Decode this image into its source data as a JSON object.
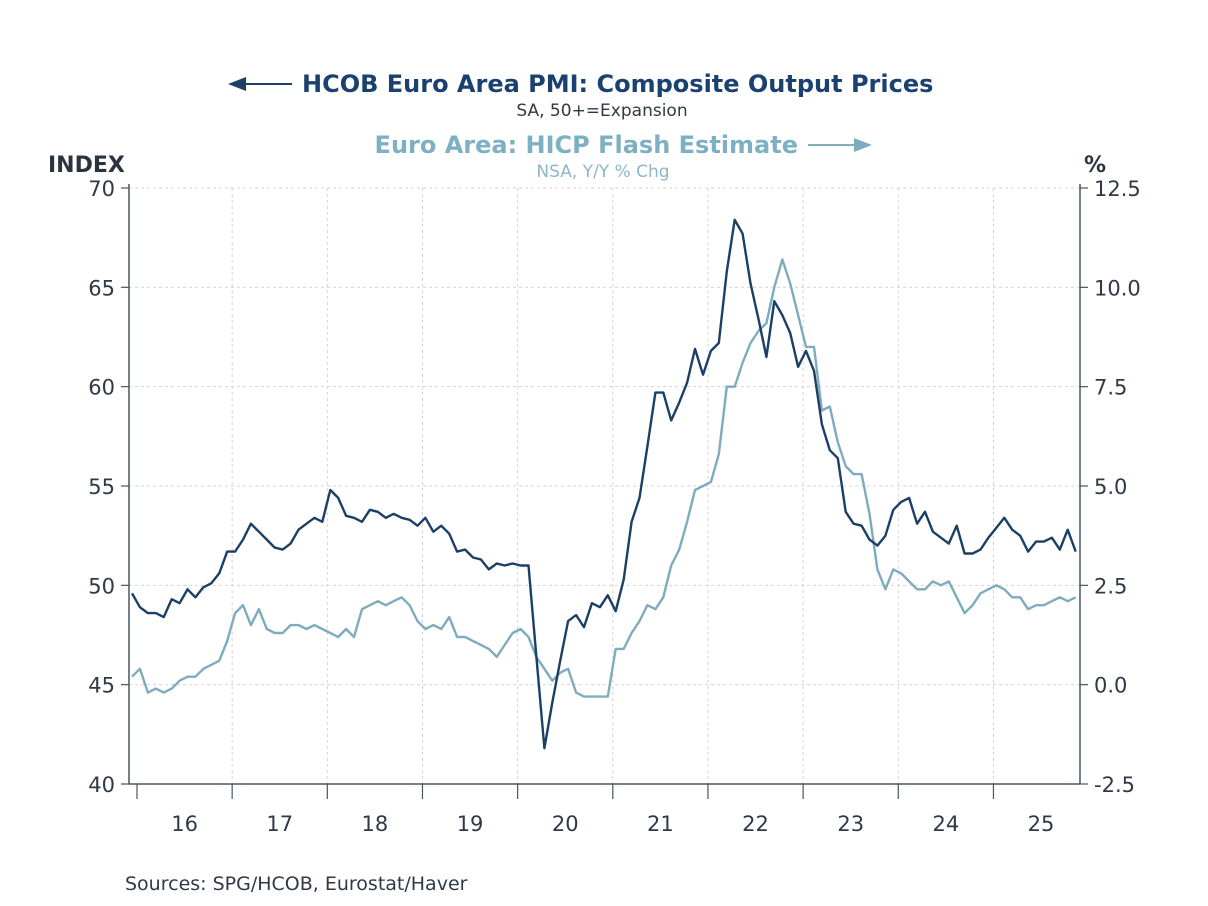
{
  "chart_data": {
    "type": "line",
    "title": "",
    "series": [
      {
        "name": "HCOB Euro Area PMI: Composite Output Prices",
        "subtitle": "SA, 50+=Expansion",
        "axis": "left",
        "color": "#1c3f66",
        "values": [
          49.6,
          48.9,
          48.6,
          48.6,
          48.4,
          49.3,
          49.1,
          49.8,
          49.4,
          49.9,
          50.1,
          50.6,
          51.7,
          51.7,
          52.3,
          53.1,
          52.7,
          52.3,
          51.9,
          51.8,
          52.1,
          52.8,
          53.1,
          53.4,
          53.2,
          54.8,
          54.4,
          53.5,
          53.4,
          53.2,
          53.8,
          53.7,
          53.4,
          53.6,
          53.4,
          53.3,
          53.0,
          53.4,
          52.7,
          53.0,
          52.6,
          51.7,
          51.8,
          51.4,
          51.3,
          50.8,
          51.1,
          51.0,
          51.1,
          51.0,
          51.0,
          46.4,
          41.8,
          44.1,
          46.2,
          48.2,
          48.5,
          47.9,
          49.1,
          48.9,
          49.5,
          48.7,
          50.3,
          53.2,
          54.4,
          57.0,
          59.7,
          59.7,
          58.3,
          59.2,
          60.2,
          61.9,
          60.6,
          61.8,
          62.2,
          65.8,
          68.4,
          67.7,
          65.2,
          63.4,
          61.5,
          64.3,
          63.6,
          62.7,
          61.0,
          61.8,
          60.8,
          58.1,
          56.8,
          56.4,
          53.7,
          53.1,
          53.0,
          52.3,
          52.0,
          52.5,
          53.8,
          54.2,
          54.4,
          53.1,
          53.7,
          52.7,
          52.4,
          52.1,
          53.0,
          51.6,
          51.6,
          51.8,
          52.4,
          52.9,
          53.4,
          52.8,
          52.5,
          51.7,
          52.2,
          52.2,
          52.4,
          51.8,
          52.8,
          51.7
        ]
      },
      {
        "name": "Euro Area: HICP Flash Estimate",
        "subtitle": "NSA, Y/Y % Chg",
        "axis": "right",
        "color": "#7eacbf",
        "values": [
          0.2,
          0.4,
          -0.2,
          -0.1,
          -0.2,
          -0.1,
          0.1,
          0.2,
          0.2,
          0.4,
          0.5,
          0.6,
          1.1,
          1.8,
          2.0,
          1.5,
          1.9,
          1.4,
          1.3,
          1.3,
          1.5,
          1.5,
          1.4,
          1.5,
          1.4,
          1.3,
          1.2,
          1.4,
          1.2,
          1.9,
          2.0,
          2.1,
          2.0,
          2.1,
          2.2,
          2.0,
          1.6,
          1.4,
          1.5,
          1.4,
          1.7,
          1.2,
          1.2,
          1.1,
          1.0,
          0.9,
          0.7,
          1.0,
          1.3,
          1.4,
          1.2,
          0.7,
          0.4,
          0.1,
          0.3,
          0.4,
          -0.2,
          -0.3,
          -0.3,
          -0.3,
          -0.3,
          0.9,
          0.9,
          1.3,
          1.6,
          2.0,
          1.9,
          2.2,
          3.0,
          3.4,
          4.1,
          4.9,
          5.0,
          5.1,
          5.8,
          7.5,
          7.5,
          8.1,
          8.6,
          8.9,
          9.1,
          10.0,
          10.7,
          10.1,
          9.3,
          8.5,
          8.5,
          6.9,
          7.0,
          6.1,
          5.5,
          5.3,
          5.3,
          4.3,
          2.9,
          2.4,
          2.9,
          2.8,
          2.6,
          2.4,
          2.4,
          2.6,
          2.5,
          2.6,
          2.2,
          1.8,
          2.0,
          2.3,
          2.4,
          2.5,
          2.4,
          2.2,
          2.2,
          1.9,
          2.0,
          2.0,
          2.1,
          2.2,
          2.1,
          2.2
        ]
      }
    ],
    "x": {
      "start": "2015-12",
      "end": "2025-11",
      "frequency": "monthly",
      "tick_labels": [
        "16",
        "17",
        "18",
        "19",
        "20",
        "21",
        "22",
        "23",
        "24",
        "25"
      ]
    },
    "y_left": {
      "label": "INDEX",
      "range": [
        40,
        70
      ],
      "ticks": [
        "40",
        "45",
        "50",
        "55",
        "60",
        "65",
        "70"
      ]
    },
    "y_right": {
      "label": "%",
      "range": [
        -2.5,
        12.5
      ],
      "ticks": [
        "-2.5",
        "0.0",
        "2.5",
        "5.0",
        "7.5",
        "10.0",
        "12.5"
      ]
    },
    "grid": true,
    "legend": "top-center"
  },
  "legend": {
    "left_title": "HCOB Euro Area PMI: Composite Output Prices",
    "left_sub": "SA, 50+=Expansion",
    "right_title": "Euro Area: HICP Flash Estimate",
    "right_sub": "NSA, Y/Y % Chg"
  },
  "source": "Sources:  SPG/HCOB, Eurostat/Haver"
}
